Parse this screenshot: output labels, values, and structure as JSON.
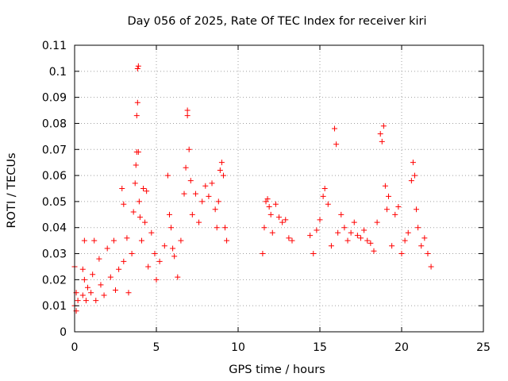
{
  "colors": {
    "series": "#ff0000",
    "background": "#ffffff",
    "grid": "#a0a0a0"
  },
  "chart_data": {
    "type": "scatter",
    "title": "Day 056 of 2025, Rate Of TEC Index for receiver kiri",
    "xlabel": "GPS time / hours",
    "ylabel": "ROTI / TECUs",
    "xlim": [
      0,
      25
    ],
    "ylim": [
      0,
      0.11
    ],
    "xticks": [
      0,
      5,
      10,
      15,
      20,
      25
    ],
    "xtick_labels": [
      "0",
      "5",
      "10",
      "15",
      "20",
      "25"
    ],
    "yticks": [
      0,
      0.01,
      0.02,
      0.03,
      0.04,
      0.05,
      0.06,
      0.07,
      0.08,
      0.09,
      0.1,
      0.11
    ],
    "ytick_labels": [
      "0",
      "0.01",
      "0.02",
      "0.03",
      "0.04",
      "0.05",
      "0.06",
      "0.07",
      "0.08",
      "0.09",
      "0.1",
      "0.11"
    ],
    "grid": true,
    "marker": "+",
    "series": [
      {
        "color": "#ff0000",
        "points": [
          [
            0.0,
            0.01
          ],
          [
            0.0,
            0.025
          ],
          [
            0.1,
            0.015
          ],
          [
            0.1,
            0.008
          ],
          [
            0.2,
            0.012
          ],
          [
            0.5,
            0.014
          ],
          [
            0.5,
            0.024
          ],
          [
            0.6,
            0.035
          ],
          [
            0.6,
            0.02
          ],
          [
            0.7,
            0.012
          ],
          [
            0.8,
            0.017
          ],
          [
            1.0,
            0.015
          ],
          [
            1.1,
            0.022
          ],
          [
            1.2,
            0.035
          ],
          [
            1.3,
            0.012
          ],
          [
            1.5,
            0.028
          ],
          [
            1.6,
            0.018
          ],
          [
            1.8,
            0.014
          ],
          [
            2.0,
            0.032
          ],
          [
            2.2,
            0.021
          ],
          [
            2.4,
            0.035
          ],
          [
            2.5,
            0.016
          ],
          [
            2.7,
            0.024
          ],
          [
            2.9,
            0.055
          ],
          [
            3.0,
            0.049
          ],
          [
            3.0,
            0.027
          ],
          [
            3.2,
            0.036
          ],
          [
            3.3,
            0.015
          ],
          [
            3.5,
            0.03
          ],
          [
            3.6,
            0.046
          ],
          [
            3.7,
            0.057
          ],
          [
            3.75,
            0.064
          ],
          [
            3.8,
            0.069
          ],
          [
            3.8,
            0.083
          ],
          [
            3.85,
            0.088
          ],
          [
            3.85,
            0.101
          ],
          [
            3.9,
            0.102
          ],
          [
            3.9,
            0.069
          ],
          [
            3.95,
            0.05
          ],
          [
            4.0,
            0.044
          ],
          [
            4.1,
            0.035
          ],
          [
            4.2,
            0.055
          ],
          [
            4.3,
            0.042
          ],
          [
            4.4,
            0.054
          ],
          [
            4.5,
            0.025
          ],
          [
            4.7,
            0.038
          ],
          [
            4.9,
            0.03
          ],
          [
            5.0,
            0.02
          ],
          [
            5.2,
            0.027
          ],
          [
            5.5,
            0.033
          ],
          [
            5.7,
            0.06
          ],
          [
            5.8,
            0.045
          ],
          [
            5.9,
            0.04
          ],
          [
            6.0,
            0.032
          ],
          [
            6.1,
            0.029
          ],
          [
            6.3,
            0.021
          ],
          [
            6.5,
            0.035
          ],
          [
            6.7,
            0.053
          ],
          [
            6.8,
            0.063
          ],
          [
            6.9,
            0.083
          ],
          [
            6.9,
            0.085
          ],
          [
            7.0,
            0.07
          ],
          [
            7.1,
            0.058
          ],
          [
            7.2,
            0.045
          ],
          [
            7.4,
            0.053
          ],
          [
            7.6,
            0.042
          ],
          [
            7.8,
            0.05
          ],
          [
            8.0,
            0.056
          ],
          [
            8.2,
            0.052
          ],
          [
            8.4,
            0.057
          ],
          [
            8.6,
            0.047
          ],
          [
            8.7,
            0.04
          ],
          [
            8.8,
            0.05
          ],
          [
            8.9,
            0.062
          ],
          [
            9.0,
            0.065
          ],
          [
            9.1,
            0.06
          ],
          [
            9.2,
            0.04
          ],
          [
            9.3,
            0.035
          ],
          [
            11.5,
            0.03
          ],
          [
            11.6,
            0.04
          ],
          [
            11.7,
            0.05
          ],
          [
            11.8,
            0.051
          ],
          [
            11.9,
            0.048
          ],
          [
            12.0,
            0.045
          ],
          [
            12.1,
            0.038
          ],
          [
            12.3,
            0.049
          ],
          [
            12.5,
            0.044
          ],
          [
            12.7,
            0.042
          ],
          [
            12.9,
            0.043
          ],
          [
            13.1,
            0.036
          ],
          [
            13.3,
            0.035
          ],
          [
            14.4,
            0.037
          ],
          [
            14.6,
            0.03
          ],
          [
            14.8,
            0.039
          ],
          [
            15.0,
            0.043
          ],
          [
            15.2,
            0.052
          ],
          [
            15.3,
            0.055
          ],
          [
            15.5,
            0.049
          ],
          [
            15.7,
            0.033
          ],
          [
            15.9,
            0.078
          ],
          [
            16.0,
            0.072
          ],
          [
            16.1,
            0.038
          ],
          [
            16.3,
            0.045
          ],
          [
            16.5,
            0.04
          ],
          [
            16.7,
            0.035
          ],
          [
            16.9,
            0.038
          ],
          [
            17.1,
            0.042
          ],
          [
            17.3,
            0.037
          ],
          [
            17.5,
            0.036
          ],
          [
            17.7,
            0.039
          ],
          [
            17.9,
            0.035
          ],
          [
            18.1,
            0.034
          ],
          [
            18.3,
            0.031
          ],
          [
            18.5,
            0.042
          ],
          [
            18.7,
            0.076
          ],
          [
            18.8,
            0.073
          ],
          [
            18.9,
            0.079
          ],
          [
            19.0,
            0.056
          ],
          [
            19.1,
            0.047
          ],
          [
            19.2,
            0.052
          ],
          [
            19.4,
            0.033
          ],
          [
            19.6,
            0.045
          ],
          [
            19.8,
            0.048
          ],
          [
            20.0,
            0.03
          ],
          [
            20.2,
            0.035
          ],
          [
            20.4,
            0.038
          ],
          [
            20.6,
            0.058
          ],
          [
            20.7,
            0.065
          ],
          [
            20.8,
            0.06
          ],
          [
            20.9,
            0.047
          ],
          [
            21.0,
            0.04
          ],
          [
            21.2,
            0.033
          ],
          [
            21.4,
            0.036
          ],
          [
            21.6,
            0.03
          ],
          [
            21.8,
            0.025
          ]
        ]
      }
    ]
  }
}
